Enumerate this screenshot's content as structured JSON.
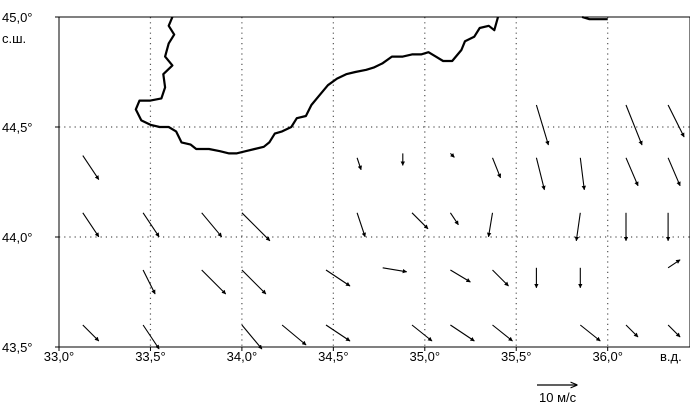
{
  "map": {
    "lat_unit": "с.ш.",
    "lon_unit": "в.д.",
    "lat_ticks": [
      {
        "value": 45.0,
        "label": "45,0°"
      },
      {
        "value": 44.5,
        "label": "44,5°"
      },
      {
        "value": 44.0,
        "label": "44,0°"
      },
      {
        "value": 43.5,
        "label": "43,5°"
      }
    ],
    "lon_ticks": [
      {
        "value": 33.0,
        "label": "33,0°"
      },
      {
        "value": 33.5,
        "label": "33,5°"
      },
      {
        "value": 34.0,
        "label": "34,0°"
      },
      {
        "value": 34.5,
        "label": "34,5°"
      },
      {
        "value": 35.0,
        "label": "35,0°"
      },
      {
        "value": 35.5,
        "label": "35,5°"
      },
      {
        "value": 36.0,
        "label": "36,0°"
      }
    ],
    "lon_range": [
      33.0,
      36.45
    ],
    "lat_range": [
      43.5,
      45.0
    ],
    "scale": {
      "label": "10 м/с",
      "speed": 10
    },
    "coastline_main": [
      [
        33.62,
        45.0
      ],
      [
        33.6,
        44.96
      ],
      [
        33.63,
        44.92
      ],
      [
        33.6,
        44.88
      ],
      [
        33.58,
        44.82
      ],
      [
        33.62,
        44.78
      ],
      [
        33.57,
        44.74
      ],
      [
        33.58,
        44.68
      ],
      [
        33.56,
        44.63
      ],
      [
        33.5,
        44.62
      ],
      [
        33.44,
        44.62
      ],
      [
        33.42,
        44.58
      ],
      [
        33.45,
        44.53
      ],
      [
        33.5,
        44.51
      ],
      [
        33.55,
        44.5
      ],
      [
        33.6,
        44.5
      ],
      [
        33.64,
        44.48
      ],
      [
        33.67,
        44.43
      ],
      [
        33.72,
        44.42
      ],
      [
        33.75,
        44.4
      ],
      [
        33.82,
        44.4
      ],
      [
        33.88,
        44.39
      ],
      [
        33.93,
        44.38
      ],
      [
        33.97,
        44.38
      ],
      [
        34.02,
        44.39
      ],
      [
        34.07,
        44.4
      ],
      [
        34.12,
        44.41
      ],
      [
        34.15,
        44.43
      ],
      [
        34.18,
        44.47
      ],
      [
        34.22,
        44.48
      ],
      [
        34.27,
        44.5
      ],
      [
        34.3,
        44.54
      ],
      [
        34.35,
        44.55
      ],
      [
        34.38,
        44.6
      ],
      [
        34.42,
        44.64
      ],
      [
        34.47,
        44.69
      ],
      [
        34.52,
        44.72
      ],
      [
        34.57,
        44.74
      ],
      [
        34.62,
        44.75
      ],
      [
        34.68,
        44.76
      ],
      [
        34.72,
        44.77
      ],
      [
        34.77,
        44.79
      ],
      [
        34.82,
        44.82
      ],
      [
        34.88,
        44.82
      ],
      [
        34.93,
        44.83
      ],
      [
        34.98,
        44.83
      ],
      [
        35.02,
        44.84
      ],
      [
        35.06,
        44.82
      ],
      [
        35.1,
        44.8
      ],
      [
        35.15,
        44.8
      ],
      [
        35.2,
        44.85
      ],
      [
        35.22,
        44.89
      ],
      [
        35.27,
        44.91
      ],
      [
        35.3,
        44.95
      ],
      [
        35.35,
        44.96
      ],
      [
        35.38,
        44.94
      ],
      [
        35.4,
        45.0
      ]
    ],
    "coastline_kerch": [
      [
        35.86,
        45.0
      ],
      [
        35.9,
        44.99
      ],
      [
        36.0,
        44.99
      ]
    ],
    "wind_vectors": [
      {
        "lon": 33.13,
        "lat": 44.37,
        "u": 4,
        "v": -6
      },
      {
        "lon": 33.13,
        "lat": 44.11,
        "u": 4,
        "v": -6
      },
      {
        "lon": 33.13,
        "lat": 43.6,
        "u": 4,
        "v": -4
      },
      {
        "lon": 33.46,
        "lat": 44.11,
        "u": 4,
        "v": -6
      },
      {
        "lon": 33.46,
        "lat": 43.85,
        "u": 3,
        "v": -6
      },
      {
        "lon": 33.46,
        "lat": 43.6,
        "u": 4,
        "v": -6
      },
      {
        "lon": 33.78,
        "lat": 44.11,
        "u": 5,
        "v": -6
      },
      {
        "lon": 33.78,
        "lat": 43.85,
        "u": 6,
        "v": -6
      },
      {
        "lon": 34.0,
        "lat": 44.11,
        "u": 7,
        "v": -7
      },
      {
        "lon": 34.0,
        "lat": 43.85,
        "u": 6,
        "v": -6
      },
      {
        "lon": 34.0,
        "lat": 43.6,
        "u": 5,
        "v": -6
      },
      {
        "lon": 34.22,
        "lat": 43.6,
        "u": 6,
        "v": -5
      },
      {
        "lon": 34.46,
        "lat": 43.85,
        "u": 6,
        "v": -4
      },
      {
        "lon": 34.46,
        "lat": 43.6,
        "u": 6,
        "v": -4
      },
      {
        "lon": 34.63,
        "lat": 44.36,
        "u": 1,
        "v": -3
      },
      {
        "lon": 34.63,
        "lat": 44.11,
        "u": 2,
        "v": -6
      },
      {
        "lon": 34.77,
        "lat": 43.86,
        "u": 6,
        "v": -1
      },
      {
        "lon": 34.88,
        "lat": 44.38,
        "u": 0,
        "v": -3
      },
      {
        "lon": 34.93,
        "lat": 44.11,
        "u": 4,
        "v": -4
      },
      {
        "lon": 34.93,
        "lat": 43.6,
        "u": 5,
        "v": -4
      },
      {
        "lon": 35.14,
        "lat": 44.38,
        "u": 1,
        "v": -1
      },
      {
        "lon": 35.14,
        "lat": 44.11,
        "u": 2,
        "v": -3
      },
      {
        "lon": 35.14,
        "lat": 43.85,
        "u": 5,
        "v": -3
      },
      {
        "lon": 35.14,
        "lat": 43.6,
        "u": 6,
        "v": -4
      },
      {
        "lon": 35.37,
        "lat": 44.36,
        "u": 2,
        "v": -5
      },
      {
        "lon": 35.37,
        "lat": 44.11,
        "u": -1,
        "v": -6
      },
      {
        "lon": 35.37,
        "lat": 43.85,
        "u": 4,
        "v": -4
      },
      {
        "lon": 35.37,
        "lat": 43.6,
        "u": 5,
        "v": -4
      },
      {
        "lon": 35.61,
        "lat": 44.6,
        "u": 3,
        "v": -10
      },
      {
        "lon": 35.61,
        "lat": 44.36,
        "u": 2,
        "v": -8
      },
      {
        "lon": 35.61,
        "lat": 43.86,
        "u": 0,
        "v": -5
      },
      {
        "lon": 35.85,
        "lat": 44.36,
        "u": 1,
        "v": -8
      },
      {
        "lon": 35.85,
        "lat": 44.11,
        "u": -1,
        "v": -7
      },
      {
        "lon": 35.85,
        "lat": 43.86,
        "u": 0,
        "v": -5
      },
      {
        "lon": 35.85,
        "lat": 43.6,
        "u": 5,
        "v": -4
      },
      {
        "lon": 36.1,
        "lat": 44.6,
        "u": 4,
        "v": -10
      },
      {
        "lon": 36.1,
        "lat": 44.36,
        "u": 3,
        "v": -7
      },
      {
        "lon": 36.1,
        "lat": 44.11,
        "u": 0,
        "v": -7
      },
      {
        "lon": 36.1,
        "lat": 43.6,
        "u": 3,
        "v": -3
      },
      {
        "lon": 36.33,
        "lat": 44.6,
        "u": 4,
        "v": -8
      },
      {
        "lon": 36.33,
        "lat": 44.36,
        "u": 3,
        "v": -7
      },
      {
        "lon": 36.33,
        "lat": 44.11,
        "u": 0,
        "v": -7
      },
      {
        "lon": 36.33,
        "lat": 43.86,
        "u": 3,
        "v": 2
      },
      {
        "lon": 36.33,
        "lat": 43.6,
        "u": 3,
        "v": -3
      }
    ]
  }
}
